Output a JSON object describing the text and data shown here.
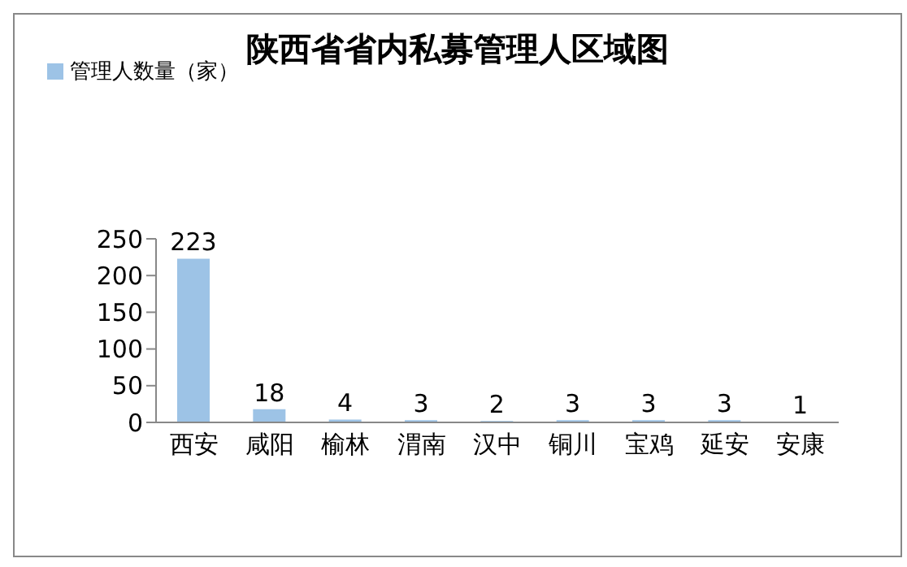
{
  "chart_data": {
    "type": "bar",
    "title": "陕西省省内私募管理人区域图",
    "categories": [
      "西安",
      "咸阳",
      "榆林",
      "渭南",
      "汉中",
      "铜川",
      "宝鸡",
      "延安",
      "安康"
    ],
    "series": [
      {
        "name": "管理人数量（家）",
        "color": "#9dc3e6",
        "values": [
          223,
          18,
          4,
          3,
          2,
          3,
          3,
          3,
          1
        ]
      }
    ],
    "ylim": [
      0,
      250
    ],
    "yticks": [
      0,
      50,
      100,
      150,
      200,
      250
    ],
    "grid": false,
    "legend": "top left",
    "data_labels": true
  }
}
